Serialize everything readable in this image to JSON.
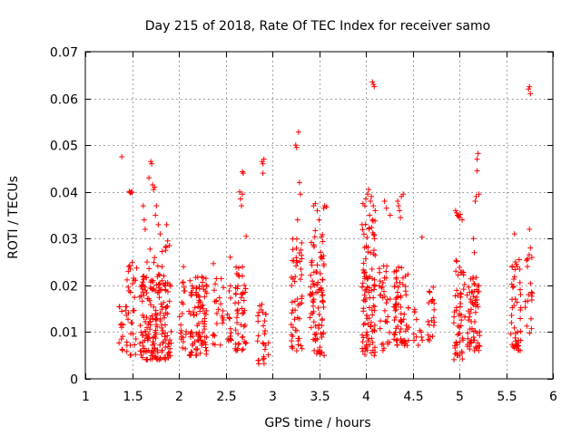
{
  "chart_data": {
    "type": "scatter",
    "title": "Day 215 of 2018, Rate Of TEC Index for receiver samo",
    "xlabel": "GPS time / hours",
    "ylabel": "ROTI / TECUs",
    "xlim": [
      1,
      6
    ],
    "ylim": [
      0,
      0.07
    ],
    "x_ticks": [
      1,
      1.5,
      2,
      2.5,
      3,
      3.5,
      4,
      4.5,
      5,
      5.5,
      6
    ],
    "x_tick_labels": [
      "1",
      "1.5",
      "2",
      "2.5",
      "3",
      "3.5",
      "4",
      "4.5",
      "5",
      "5.5",
      "6"
    ],
    "y_ticks": [
      0,
      0.01,
      0.02,
      0.03,
      0.04,
      0.05,
      0.06,
      0.07
    ],
    "y_tick_labels": [
      "0",
      "0.01",
      "0.02",
      "0.03",
      "0.04",
      "0.05",
      "0.06",
      "0.07"
    ],
    "grid": true,
    "marker": "plus",
    "marker_color": "#ff0000",
    "clusters": [
      {
        "x": [
          1.36,
          1.42
        ],
        "ymin": 0.006,
        "ymax": 0.016,
        "n": 12
      },
      {
        "x": [
          1.43,
          1.55
        ],
        "ymin": 0.005,
        "ymax": 0.025,
        "n": 35
      },
      {
        "x": [
          1.58,
          1.92
        ],
        "ymin": 0.004,
        "ymax": 0.022,
        "n": 170
      },
      {
        "x": [
          1.6,
          1.9
        ],
        "ymin": 0.02,
        "ymax": 0.03,
        "n": 22
      },
      {
        "x": [
          2.0,
          2.08
        ],
        "ymin": 0.006,
        "ymax": 0.024,
        "n": 20
      },
      {
        "x": [
          2.1,
          2.3
        ],
        "ymin": 0.005,
        "ymax": 0.022,
        "n": 95
      },
      {
        "x": [
          2.36,
          2.48
        ],
        "ymin": 0.007,
        "ymax": 0.025,
        "n": 25
      },
      {
        "x": [
          2.5,
          2.56
        ],
        "ymin": 0.008,
        "ymax": 0.022,
        "n": 14
      },
      {
        "x": [
          2.6,
          2.72
        ],
        "ymin": 0.006,
        "ymax": 0.024,
        "n": 50
      },
      {
        "x": [
          2.84,
          2.96
        ],
        "ymin": 0.003,
        "ymax": 0.016,
        "n": 28
      },
      {
        "x": [
          3.2,
          3.32
        ],
        "ymin": 0.006,
        "ymax": 0.03,
        "n": 55
      },
      {
        "x": [
          3.4,
          3.56
        ],
        "ymin": 0.005,
        "ymax": 0.032,
        "n": 90
      },
      {
        "x": [
          3.96,
          4.1
        ],
        "ymin": 0.005,
        "ymax": 0.034,
        "n": 100
      },
      {
        "x": [
          4.14,
          4.26
        ],
        "ymin": 0.006,
        "ymax": 0.025,
        "n": 35
      },
      {
        "x": [
          4.3,
          4.46
        ],
        "ymin": 0.007,
        "ymax": 0.024,
        "n": 75
      },
      {
        "x": [
          4.5,
          4.62
        ],
        "ymin": 0.007,
        "ymax": 0.018,
        "n": 12
      },
      {
        "x": [
          4.66,
          4.74
        ],
        "ymin": 0.008,
        "ymax": 0.02,
        "n": 20
      },
      {
        "x": [
          4.94,
          5.06
        ],
        "ymin": 0.004,
        "ymax": 0.026,
        "n": 55
      },
      {
        "x": [
          5.08,
          5.22
        ],
        "ymin": 0.006,
        "ymax": 0.022,
        "n": 65
      },
      {
        "x": [
          5.54,
          5.66
        ],
        "ymin": 0.006,
        "ymax": 0.025,
        "n": 45
      },
      {
        "x": [
          5.7,
          5.78
        ],
        "ymin": 0.009,
        "ymax": 0.028,
        "n": 18
      }
    ],
    "points": [
      [
        1.39,
        0.0475
      ],
      [
        1.47,
        0.0401
      ],
      [
        1.48,
        0.0398
      ],
      [
        1.49,
        0.04
      ],
      [
        1.5,
        0.0399
      ],
      [
        1.46,
        0.023
      ],
      [
        1.48,
        0.0235
      ],
      [
        1.62,
        0.037
      ],
      [
        1.63,
        0.034
      ],
      [
        1.64,
        0.032
      ],
      [
        1.66,
        0.025
      ],
      [
        1.68,
        0.043
      ],
      [
        1.7,
        0.0465
      ],
      [
        1.71,
        0.046
      ],
      [
        1.72,
        0.0415
      ],
      [
        1.73,
        0.0405
      ],
      [
        1.74,
        0.041
      ],
      [
        1.76,
        0.037
      ],
      [
        1.75,
        0.035
      ],
      [
        1.78,
        0.033
      ],
      [
        1.8,
        0.031
      ],
      [
        1.82,
        0.024
      ],
      [
        1.84,
        0.022
      ],
      [
        1.87,
        0.033
      ],
      [
        1.88,
        0.0295
      ],
      [
        1.9,
        0.0285
      ],
      [
        1.86,
        0.0275
      ],
      [
        2.05,
        0.024
      ],
      [
        2.12,
        0.021
      ],
      [
        2.55,
        0.026
      ],
      [
        2.62,
        0.0225
      ],
      [
        2.65,
        0.04
      ],
      [
        2.66,
        0.0385
      ],
      [
        2.67,
        0.037
      ],
      [
        2.68,
        0.0395
      ],
      [
        2.68,
        0.0443
      ],
      [
        2.69,
        0.044
      ],
      [
        2.72,
        0.0305
      ],
      [
        2.7,
        0.02
      ],
      [
        2.89,
        0.0465
      ],
      [
        2.9,
        0.046
      ],
      [
        2.91,
        0.047
      ],
      [
        2.9,
        0.044
      ],
      [
        3.25,
        0.05
      ],
      [
        3.26,
        0.0495
      ],
      [
        3.28,
        0.0528
      ],
      [
        3.29,
        0.042
      ],
      [
        3.3,
        0.0395
      ],
      [
        3.27,
        0.034
      ],
      [
        3.44,
        0.037
      ],
      [
        3.46,
        0.0375
      ],
      [
        3.48,
        0.036
      ],
      [
        3.5,
        0.034
      ],
      [
        3.55,
        0.0365
      ],
      [
        3.56,
        0.037
      ],
      [
        3.58,
        0.0368
      ],
      [
        3.96,
        0.033
      ],
      [
        3.97,
        0.0375
      ],
      [
        3.99,
        0.037
      ],
      [
        4.0,
        0.0385
      ],
      [
        4.02,
        0.0395
      ],
      [
        4.03,
        0.0405
      ],
      [
        4.05,
        0.038
      ],
      [
        4.06,
        0.039
      ],
      [
        4.08,
        0.037
      ],
      [
        4.1,
        0.036
      ],
      [
        4.04,
        0.035
      ],
      [
        4.07,
        0.034
      ],
      [
        4.07,
        0.0635
      ],
      [
        4.08,
        0.063
      ],
      [
        4.09,
        0.0625
      ],
      [
        4.2,
        0.038
      ],
      [
        4.22,
        0.0365
      ],
      [
        4.26,
        0.035
      ],
      [
        4.34,
        0.038
      ],
      [
        4.35,
        0.037
      ],
      [
        4.36,
        0.036
      ],
      [
        4.38,
        0.039
      ],
      [
        4.4,
        0.0395
      ],
      [
        4.37,
        0.0345
      ],
      [
        4.6,
        0.0303
      ],
      [
        4.96,
        0.036
      ],
      [
        4.97,
        0.0355
      ],
      [
        4.98,
        0.035
      ],
      [
        4.99,
        0.0348
      ],
      [
        5.0,
        0.0345
      ],
      [
        5.01,
        0.0352
      ],
      [
        5.03,
        0.034
      ],
      [
        5.17,
        0.038
      ],
      [
        5.18,
        0.039
      ],
      [
        5.19,
        0.0445
      ],
      [
        5.19,
        0.047
      ],
      [
        5.2,
        0.0482
      ],
      [
        5.21,
        0.0395
      ],
      [
        5.15,
        0.03
      ],
      [
        5.16,
        0.027
      ],
      [
        5.59,
        0.031
      ],
      [
        5.6,
        0.025
      ],
      [
        5.61,
        0.0245
      ],
      [
        5.62,
        0.024
      ],
      [
        5.64,
        0.0255
      ],
      [
        5.74,
        0.062
      ],
      [
        5.75,
        0.0625
      ],
      [
        5.76,
        0.061
      ],
      [
        5.75,
        0.032
      ],
      [
        5.76,
        0.028
      ],
      [
        5.74,
        0.018
      ]
    ]
  }
}
